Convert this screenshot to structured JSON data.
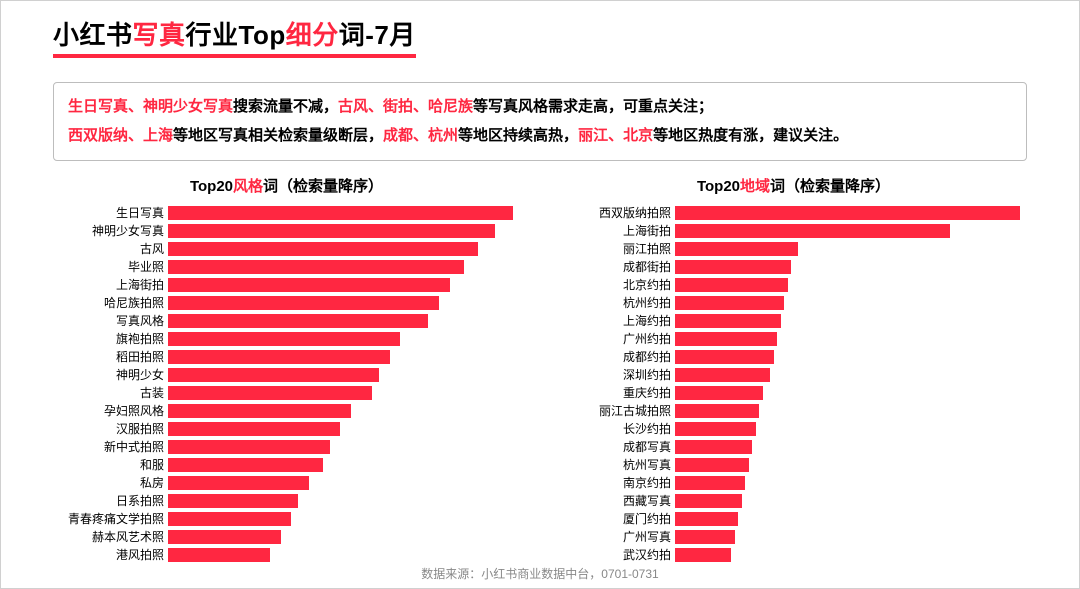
{
  "colors": {
    "accent": "#ff2741",
    "text": "#000000",
    "border": "#bdbdbd",
    "footer": "#888888",
    "bg": "#ffffff"
  },
  "title": {
    "parts": [
      {
        "t": "小红书",
        "hl": false
      },
      {
        "t": "写真",
        "hl": true
      },
      {
        "t": "行业Top",
        "hl": false
      },
      {
        "t": "细分",
        "hl": true
      },
      {
        "t": "词-7月",
        "hl": false
      }
    ]
  },
  "summary": {
    "line1": [
      {
        "t": "生日写真、神明少女写真",
        "hl": true
      },
      {
        "t": "搜索流量不减，",
        "hl": false
      },
      {
        "t": "古风、街拍、哈尼族",
        "hl": true
      },
      {
        "t": "等写真风格需求走高，可重点关注；",
        "hl": false
      }
    ],
    "line2": [
      {
        "t": "西双版纳、上海",
        "hl": true
      },
      {
        "t": "等地区写真相关检索量级断层，",
        "hl": false
      },
      {
        "t": "成都、杭州",
        "hl": true
      },
      {
        "t": "等地区持续高热，",
        "hl": false
      },
      {
        "t": "丽江、北京",
        "hl": true
      },
      {
        "t": "等地区热度有涨，建议关注。",
        "hl": false
      }
    ]
  },
  "chart_left": {
    "type": "bar-horizontal",
    "title_parts": [
      {
        "t": "Top20",
        "hl": false
      },
      {
        "t": "风格",
        "hl": true
      },
      {
        "t": "词（检索量降序）",
        "hl": false
      }
    ],
    "bar_color": "#ff2741",
    "max": 100,
    "items": [
      {
        "label": "生日写真",
        "value": 98
      },
      {
        "label": "神明少女写真",
        "value": 93
      },
      {
        "label": "古风",
        "value": 88
      },
      {
        "label": "毕业照",
        "value": 84
      },
      {
        "label": "上海街拍",
        "value": 80
      },
      {
        "label": "哈尼族拍照",
        "value": 77
      },
      {
        "label": "写真风格",
        "value": 74
      },
      {
        "label": "旗袍拍照",
        "value": 66
      },
      {
        "label": "稻田拍照",
        "value": 63
      },
      {
        "label": "神明少女",
        "value": 60
      },
      {
        "label": "古装",
        "value": 58
      },
      {
        "label": "孕妇照风格",
        "value": 52
      },
      {
        "label": "汉服拍照",
        "value": 49
      },
      {
        "label": "新中式拍照",
        "value": 46
      },
      {
        "label": "和服",
        "value": 44
      },
      {
        "label": "私房",
        "value": 40
      },
      {
        "label": "日系拍照",
        "value": 37
      },
      {
        "label": "青春疼痛文学拍照",
        "value": 35
      },
      {
        "label": "赫本风艺术照",
        "value": 32
      },
      {
        "label": "港风拍照",
        "value": 29
      }
    ]
  },
  "chart_right": {
    "type": "bar-horizontal",
    "title_parts": [
      {
        "t": "Top20",
        "hl": false
      },
      {
        "t": "地域",
        "hl": true
      },
      {
        "t": "词（检索量降序）",
        "hl": false
      }
    ],
    "bar_color": "#ff2741",
    "max": 100,
    "items": [
      {
        "label": "西双版纳拍照",
        "value": 98
      },
      {
        "label": "上海街拍",
        "value": 78
      },
      {
        "label": "丽江拍照",
        "value": 35
      },
      {
        "label": "成都街拍",
        "value": 33
      },
      {
        "label": "北京约拍",
        "value": 32
      },
      {
        "label": "杭州约拍",
        "value": 31
      },
      {
        "label": "上海约拍",
        "value": 30
      },
      {
        "label": "广州约拍",
        "value": 29
      },
      {
        "label": "成都约拍",
        "value": 28
      },
      {
        "label": "深圳约拍",
        "value": 27
      },
      {
        "label": "重庆约拍",
        "value": 25
      },
      {
        "label": "丽江古城拍照",
        "value": 24
      },
      {
        "label": "长沙约拍",
        "value": 23
      },
      {
        "label": "成都写真",
        "value": 22
      },
      {
        "label": "杭州写真",
        "value": 21
      },
      {
        "label": "南京约拍",
        "value": 20
      },
      {
        "label": "西藏写真",
        "value": 19
      },
      {
        "label": "厦门约拍",
        "value": 18
      },
      {
        "label": "广州写真",
        "value": 17
      },
      {
        "label": "武汉约拍",
        "value": 16
      }
    ]
  },
  "footer": "数据来源：小红书商业数据中台，0701-0731"
}
